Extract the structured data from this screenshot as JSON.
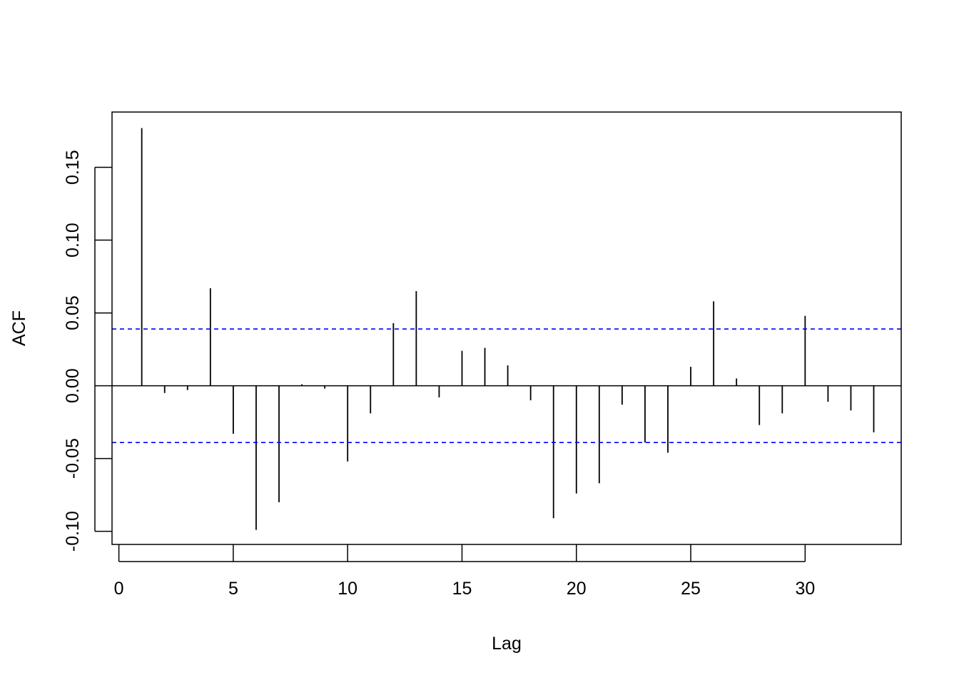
{
  "chart_data": {
    "type": "bar",
    "title": "",
    "xlabel": "Lag",
    "ylabel": "ACF",
    "xlim": [
      -0.3,
      34.2
    ],
    "ylim": [
      -0.109,
      0.188
    ],
    "x_ticks": [
      0,
      5,
      10,
      15,
      20,
      25,
      30
    ],
    "x_tick_labels": [
      "0",
      "5",
      "10",
      "15",
      "20",
      "25",
      "30"
    ],
    "y_ticks": [
      -0.1,
      -0.05,
      0.0,
      0.05,
      0.1,
      0.15
    ],
    "y_tick_labels": [
      "-0.10",
      "-0.05",
      "0.00",
      "0.05",
      "0.10",
      "0.15"
    ],
    "lags": [
      1,
      2,
      3,
      4,
      5,
      6,
      7,
      8,
      9,
      10,
      11,
      12,
      13,
      14,
      15,
      16,
      17,
      18,
      19,
      20,
      21,
      22,
      23,
      24,
      25,
      26,
      27,
      28,
      29,
      30,
      31,
      32,
      33
    ],
    "values": [
      0.177,
      -0.005,
      -0.003,
      0.067,
      -0.033,
      -0.099,
      -0.08,
      0.001,
      -0.002,
      -0.052,
      -0.019,
      0.043,
      0.065,
      -0.008,
      0.024,
      0.026,
      0.014,
      -0.01,
      -0.091,
      -0.074,
      -0.067,
      -0.013,
      -0.039,
      -0.046,
      0.013,
      0.058,
      0.005,
      -0.027,
      -0.019,
      0.048,
      -0.011,
      -0.017,
      -0.032
    ],
    "confidence_bounds": [
      0.039,
      -0.039
    ],
    "grid": false,
    "colors": {
      "bars": "#000000",
      "bounds": "#0000ff",
      "zero_line": "#000000"
    }
  }
}
